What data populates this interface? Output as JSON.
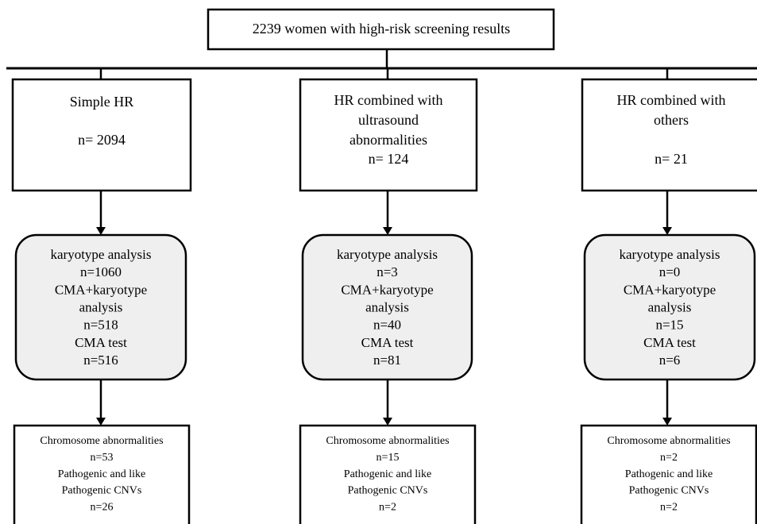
{
  "top": {
    "label": "2239 women with high-risk screening results"
  },
  "columns": [
    {
      "group": {
        "lines": [
          "Simple HR",
          "n= 2094"
        ]
      },
      "analysis": {
        "lines": [
          "karyotype analysis",
          "n=1060",
          "CMA+karyotype",
          "analysis",
          "n=518",
          "CMA test",
          "n=516"
        ]
      },
      "results": {
        "lines": [
          "Chromosome abnormalities",
          "n=53",
          "Pathogenic and like",
          "Pathogenic CNVs",
          "n=26"
        ]
      }
    },
    {
      "group": {
        "lines": [
          "HR combined with",
          "ultrasound",
          "abnormalities",
          "n= 124"
        ]
      },
      "analysis": {
        "lines": [
          "karyotype analysis",
          "n=3",
          "CMA+karyotype",
          "analysis",
          "n=40",
          "CMA test",
          "n=81"
        ]
      },
      "results": {
        "lines": [
          "Chromosome abnormalities",
          "n=15",
          "Pathogenic and like",
          "Pathogenic CNVs",
          "n=2"
        ]
      }
    },
    {
      "group": {
        "lines": [
          "HR combined with",
          "others",
          "n= 21"
        ]
      },
      "analysis": {
        "lines": [
          "karyotype analysis",
          "n=0",
          "CMA+karyotype",
          "analysis",
          "n=15",
          "CMA test",
          "n=6"
        ]
      },
      "results": {
        "lines": [
          "Chromosome abnormalities",
          "n=2",
          "Pathogenic and like",
          "Pathogenic CNVs",
          "n=2"
        ]
      }
    }
  ]
}
